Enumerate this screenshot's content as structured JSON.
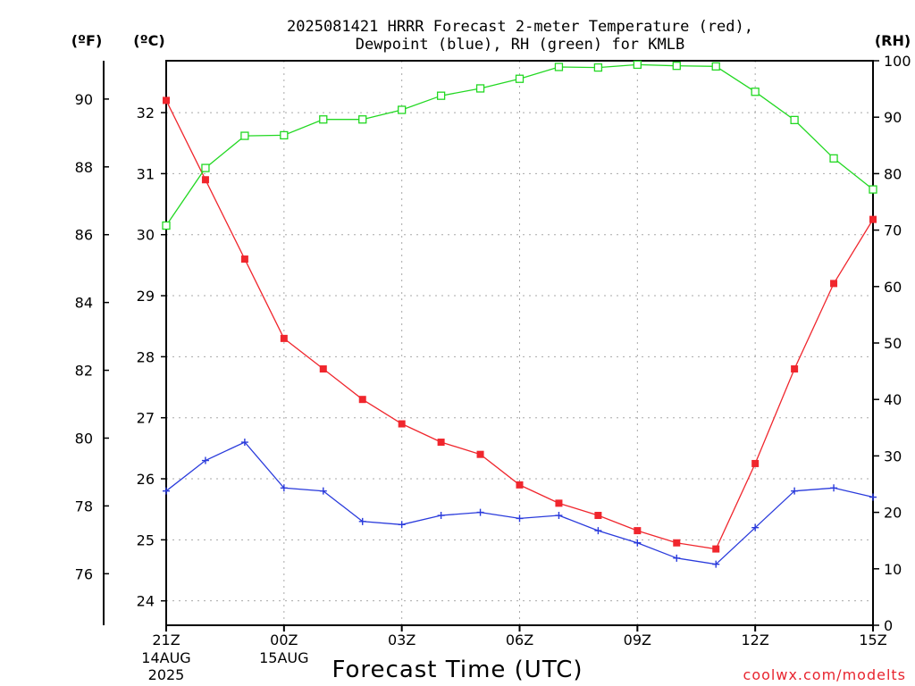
{
  "chart_data": {
    "type": "line",
    "title_line1": "2025081421 HRRR Forecast 2-meter Temperature (red),",
    "title_line2": "Dewpoint (blue), RH (green) for KMLB",
    "xlabel": "Forecast Time (UTC)",
    "credit": "coolwx.com/modelts",
    "unit_f": "(ºF)",
    "unit_c": "(ºC)",
    "unit_rh": "(RH)",
    "x_hours": [
      21,
      22,
      23,
      24,
      25,
      26,
      27,
      28,
      29,
      30,
      31,
      32,
      33,
      34,
      35,
      36,
      37,
      38,
      39
    ],
    "x_ticks": [
      {
        "hour": 21,
        "label": "21Z",
        "sub1": "14AUG",
        "sub2": "2025"
      },
      {
        "hour": 24,
        "label": "00Z",
        "sub1": "15AUG",
        "sub2": ""
      },
      {
        "hour": 27,
        "label": "03Z",
        "sub1": "",
        "sub2": ""
      },
      {
        "hour": 30,
        "label": "06Z",
        "sub1": "",
        "sub2": ""
      },
      {
        "hour": 33,
        "label": "09Z",
        "sub1": "",
        "sub2": ""
      },
      {
        "hour": 36,
        "label": "12Z",
        "sub1": "",
        "sub2": ""
      },
      {
        "hour": 39,
        "label": "15Z",
        "sub1": "",
        "sub2": ""
      }
    ],
    "xlim": [
      21,
      39
    ],
    "celsius_axis": {
      "ylim": [
        23.6,
        32.85
      ],
      "ticks": [
        24,
        25,
        26,
        27,
        28,
        29,
        30,
        31,
        32
      ]
    },
    "fahrenheit_axis": {
      "ticks": [
        76,
        78,
        80,
        82,
        84,
        86,
        88,
        90
      ]
    },
    "rh_axis": {
      "ylim": [
        0,
        100
      ],
      "ticks": [
        0,
        10,
        20,
        30,
        40,
        50,
        60,
        70,
        80,
        90,
        100
      ]
    },
    "series": [
      {
        "name": "Temperature",
        "axis": "celsius",
        "color": "#f0262d",
        "marker": "filled-square",
        "values": [
          32.2,
          30.9,
          29.6,
          28.3,
          27.8,
          27.3,
          26.9,
          26.6,
          26.4,
          25.9,
          25.6,
          25.4,
          25.15,
          24.95,
          24.85,
          26.25,
          27.8,
          29.2,
          30.25
        ]
      },
      {
        "name": "Dewpoint",
        "axis": "celsius",
        "color": "#2a3bdc",
        "marker": "plus",
        "values": [
          25.8,
          26.3,
          26.6,
          25.85,
          25.8,
          25.3,
          25.25,
          25.4,
          25.45,
          25.35,
          25.4,
          25.15,
          24.95,
          24.7,
          24.6,
          25.2,
          25.8,
          25.85,
          25.7
        ]
      },
      {
        "name": "RH",
        "axis": "rh",
        "color": "#22d822",
        "marker": "open-square",
        "values": [
          70.8,
          81,
          86.7,
          86.8,
          89.6,
          89.6,
          91.3,
          93.8,
          95.1,
          96.8,
          98.9,
          98.8,
          99.3,
          99.1,
          99,
          94.5,
          89.5,
          82.7,
          77.2
        ]
      }
    ]
  }
}
